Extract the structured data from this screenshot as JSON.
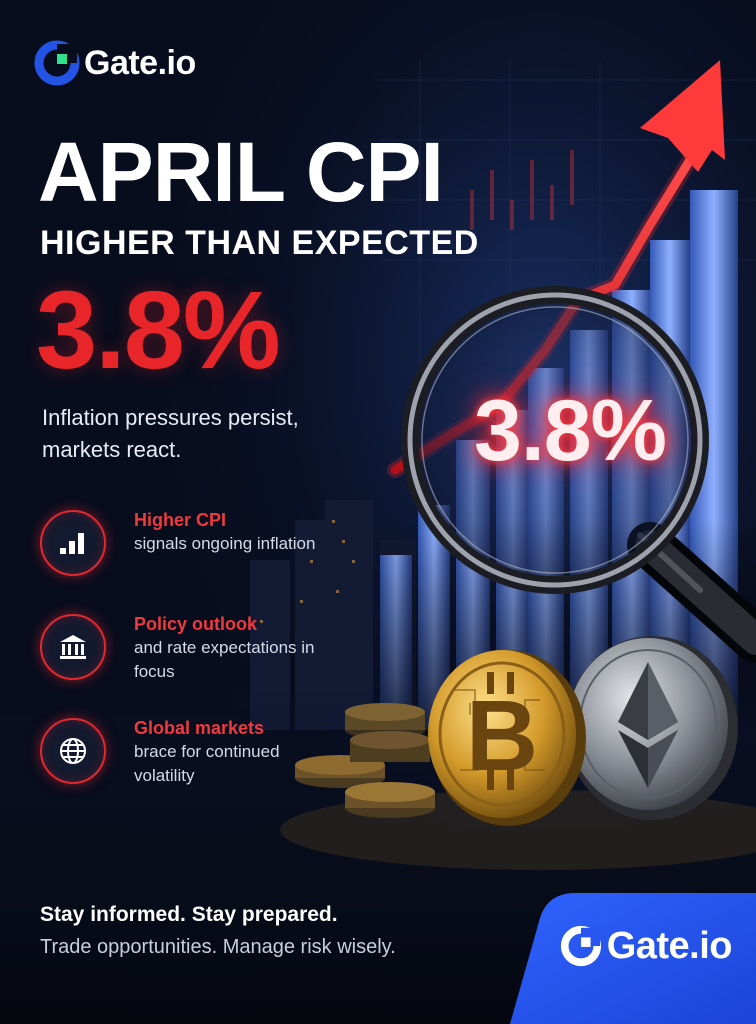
{
  "brand": {
    "name": "Gate.io",
    "accent": "#2354e6",
    "logo_green": "#2fe08c"
  },
  "headline": {
    "title": "APRIL CPI",
    "subtitle": "HIGHER THAN EXPECTED",
    "value": "3.8%",
    "value_color": "#e8262a"
  },
  "description": "Inflation pressures persist, markets react.",
  "lens_value": "3.8%",
  "features": [
    {
      "icon": "bar-chart-icon",
      "title": "Higher CPI",
      "body": "signals ongoing inflation"
    },
    {
      "icon": "bank-icon",
      "title": "Policy outlook",
      "body": "and rate expectations in focus"
    },
    {
      "icon": "globe-icon",
      "title": "Global markets",
      "body": "brace for continued volatility"
    }
  ],
  "tagline": {
    "line1": "Stay informed. Stay prepared.",
    "line2": "Trade opportunities. Manage risk wisely."
  },
  "coins": [
    "bitcoin-coin",
    "ethereum-coin"
  ]
}
